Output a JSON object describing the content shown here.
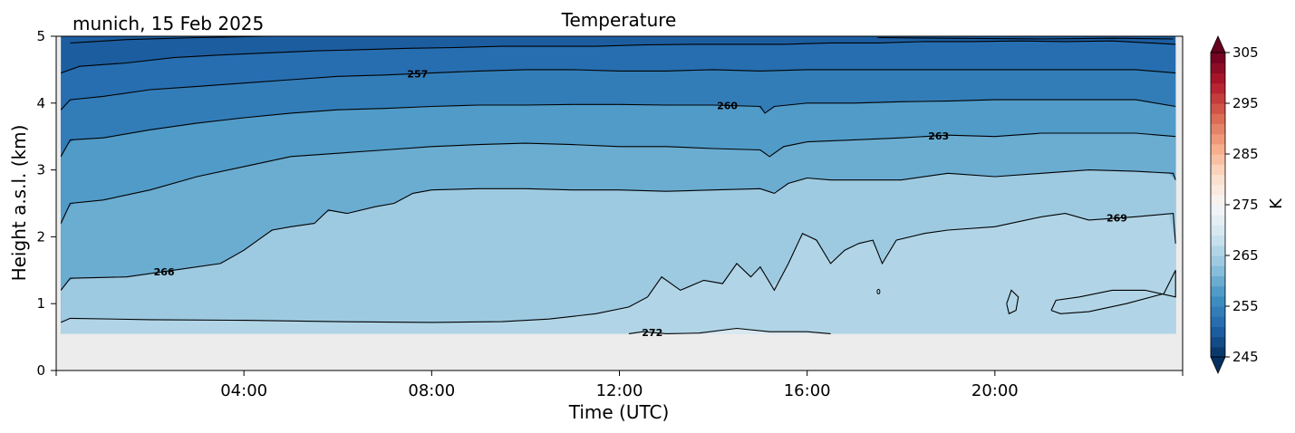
{
  "chart_data": {
    "type": "heatmap",
    "location_date": "munich, 15 Feb 2025",
    "title": "Temperature",
    "xlabel": "Time (UTC)",
    "ylabel": "Height a.s.l. (km)",
    "colorbar_label": "K",
    "x_range_hours": [
      0,
      24
    ],
    "x_ticks": [
      {
        "hour": 4,
        "label": "04:00"
      },
      {
        "hour": 8,
        "label": "08:00"
      },
      {
        "hour": 12,
        "label": "12:00"
      },
      {
        "hour": 16,
        "label": "16:00"
      },
      {
        "hour": 20,
        "label": "20:00"
      }
    ],
    "ylim_km": [
      0,
      5
    ],
    "y_ticks": [
      "0",
      "1",
      "2",
      "3",
      "4",
      "5"
    ],
    "data_bottom_km": 0.55,
    "colorbar": {
      "vmin": 245,
      "vmax": 305,
      "step": 2,
      "ticks": [
        "245",
        "255",
        "265",
        "275",
        "285",
        "295",
        "305"
      ],
      "colormap": "RdBu_r",
      "extend": "both"
    },
    "contours": [
      {
        "level": 272,
        "label": "272",
        "label_hour": 12.7,
        "points": [
          [
            12.2,
            0.55
          ],
          [
            12.5,
            0.58
          ],
          [
            13.0,
            0.55
          ],
          [
            13.7,
            0.56
          ],
          [
            14.5,
            0.63
          ],
          [
            15.2,
            0.58
          ],
          [
            16.0,
            0.58
          ],
          [
            16.5,
            0.55
          ]
        ]
      },
      {
        "level": 269,
        "label": "269",
        "label_hour": 22.6,
        "points": [
          [
            0.1,
            0.72
          ],
          [
            0.3,
            0.78
          ],
          [
            2,
            0.76
          ],
          [
            4,
            0.75
          ],
          [
            6,
            0.73
          ],
          [
            8,
            0.72
          ],
          [
            9.5,
            0.73
          ],
          [
            10.5,
            0.77
          ],
          [
            11.5,
            0.85
          ],
          [
            12.2,
            0.95
          ],
          [
            12.6,
            1.1
          ],
          [
            12.9,
            1.4
          ],
          [
            13.3,
            1.2
          ],
          [
            13.8,
            1.35
          ],
          [
            14.2,
            1.3
          ],
          [
            14.5,
            1.6
          ],
          [
            14.8,
            1.4
          ],
          [
            15.0,
            1.55
          ],
          [
            15.3,
            1.2
          ],
          [
            15.6,
            1.6
          ],
          [
            15.9,
            2.05
          ],
          [
            16.2,
            1.95
          ],
          [
            16.5,
            1.6
          ],
          [
            16.8,
            1.8
          ],
          [
            17.1,
            1.9
          ],
          [
            17.4,
            1.95
          ],
          [
            17.6,
            1.6
          ],
          [
            17.9,
            1.95
          ],
          [
            18.5,
            2.05
          ],
          [
            19.0,
            2.1
          ],
          [
            20.0,
            2.15
          ],
          [
            21.0,
            2.3
          ],
          [
            21.5,
            2.35
          ],
          [
            22.0,
            2.25
          ],
          [
            23.0,
            2.3
          ],
          [
            23.8,
            2.35
          ],
          [
            23.85,
            1.9
          ]
        ]
      },
      {
        "level": 269,
        "label": "",
        "label_hour": null,
        "points": [
          [
            20.25,
            1.0
          ],
          [
            20.35,
            1.2
          ],
          [
            20.5,
            1.1
          ],
          [
            20.45,
            0.9
          ],
          [
            20.3,
            0.85
          ],
          [
            20.25,
            1.0
          ]
        ]
      },
      {
        "level": 269,
        "label": "",
        "label_hour": null,
        "points": [
          [
            21.2,
            0.9
          ],
          [
            21.3,
            1.05
          ],
          [
            21.8,
            1.1
          ],
          [
            22.5,
            1.2
          ],
          [
            23.2,
            1.2
          ],
          [
            23.85,
            1.1
          ],
          [
            23.85,
            1.5
          ],
          [
            23.6,
            1.15
          ],
          [
            22.8,
            1.0
          ],
          [
            22.0,
            0.88
          ],
          [
            21.4,
            0.85
          ],
          [
            21.2,
            0.9
          ]
        ]
      },
      {
        "level": 266,
        "label": "266",
        "label_hour": 2.3,
        "points": [
          [
            0.1,
            1.2
          ],
          [
            0.3,
            1.38
          ],
          [
            1.5,
            1.4
          ],
          [
            2.5,
            1.5
          ],
          [
            3.5,
            1.6
          ],
          [
            4.0,
            1.8
          ],
          [
            4.3,
            1.95
          ],
          [
            4.6,
            2.1
          ],
          [
            5.0,
            2.15
          ],
          [
            5.5,
            2.2
          ],
          [
            5.8,
            2.4
          ],
          [
            6.2,
            2.35
          ],
          [
            6.8,
            2.45
          ],
          [
            7.2,
            2.5
          ],
          [
            7.6,
            2.65
          ],
          [
            8.0,
            2.7
          ],
          [
            9.0,
            2.72
          ],
          [
            10.0,
            2.72
          ],
          [
            11.0,
            2.7
          ],
          [
            12.0,
            2.7
          ],
          [
            13.0,
            2.68
          ],
          [
            14.0,
            2.7
          ],
          [
            15.0,
            2.72
          ],
          [
            15.3,
            2.65
          ],
          [
            15.6,
            2.8
          ],
          [
            16.0,
            2.88
          ],
          [
            16.5,
            2.85
          ],
          [
            17.0,
            2.85
          ],
          [
            18.0,
            2.85
          ],
          [
            19.0,
            2.95
          ],
          [
            20.0,
            2.9
          ],
          [
            21.0,
            2.95
          ],
          [
            22.0,
            3.0
          ],
          [
            23.0,
            2.98
          ],
          [
            23.8,
            2.95
          ],
          [
            23.85,
            2.85
          ]
        ]
      },
      {
        "level": 263,
        "label": "263",
        "label_hour": 18.8,
        "points": [
          [
            0.1,
            2.2
          ],
          [
            0.3,
            2.5
          ],
          [
            1.0,
            2.55
          ],
          [
            2.0,
            2.7
          ],
          [
            3.0,
            2.9
          ],
          [
            4.0,
            3.05
          ],
          [
            5.0,
            3.2
          ],
          [
            6.0,
            3.25
          ],
          [
            7.0,
            3.3
          ],
          [
            8.0,
            3.35
          ],
          [
            9.0,
            3.38
          ],
          [
            10.0,
            3.4
          ],
          [
            11.0,
            3.38
          ],
          [
            12.0,
            3.35
          ],
          [
            13.0,
            3.35
          ],
          [
            14.0,
            3.32
          ],
          [
            15.0,
            3.3
          ],
          [
            15.2,
            3.2
          ],
          [
            15.5,
            3.35
          ],
          [
            16.0,
            3.42
          ],
          [
            17.0,
            3.45
          ],
          [
            18.0,
            3.48
          ],
          [
            19.0,
            3.52
          ],
          [
            20.0,
            3.5
          ],
          [
            21.0,
            3.55
          ],
          [
            22.0,
            3.55
          ],
          [
            23.0,
            3.55
          ],
          [
            23.85,
            3.5
          ]
        ]
      },
      {
        "level": 260,
        "label": "260",
        "label_hour": 14.3,
        "points": [
          [
            0.1,
            3.2
          ],
          [
            0.3,
            3.45
          ],
          [
            1.0,
            3.48
          ],
          [
            2.0,
            3.6
          ],
          [
            3.0,
            3.7
          ],
          [
            4.0,
            3.78
          ],
          [
            5.0,
            3.85
          ],
          [
            6.0,
            3.9
          ],
          [
            7.0,
            3.92
          ],
          [
            8.0,
            3.95
          ],
          [
            9.0,
            3.97
          ],
          [
            10.0,
            3.97
          ],
          [
            11.0,
            3.98
          ],
          [
            12.0,
            3.98
          ],
          [
            13.0,
            3.97
          ],
          [
            14.0,
            3.97
          ],
          [
            15.0,
            3.95
          ],
          [
            15.1,
            3.85
          ],
          [
            15.3,
            3.95
          ],
          [
            16.0,
            4.0
          ],
          [
            17.0,
            4.0
          ],
          [
            18.0,
            4.02
          ],
          [
            19.0,
            4.03
          ],
          [
            20.0,
            4.05
          ],
          [
            21.0,
            4.05
          ],
          [
            22.0,
            4.05
          ],
          [
            23.0,
            4.05
          ],
          [
            23.85,
            3.95
          ]
        ]
      },
      {
        "level": 257,
        "label": "257",
        "label_hour": 7.7,
        "points": [
          [
            0.1,
            3.9
          ],
          [
            0.3,
            4.05
          ],
          [
            1.0,
            4.1
          ],
          [
            2.0,
            4.2
          ],
          [
            3.0,
            4.25
          ],
          [
            4.0,
            4.3
          ],
          [
            5.0,
            4.35
          ],
          [
            6.0,
            4.4
          ],
          [
            7.0,
            4.42
          ],
          [
            8.0,
            4.45
          ],
          [
            9.0,
            4.48
          ],
          [
            10.0,
            4.5
          ],
          [
            11.0,
            4.5
          ],
          [
            12.0,
            4.48
          ],
          [
            13.0,
            4.48
          ],
          [
            14.0,
            4.5
          ],
          [
            15.0,
            4.48
          ],
          [
            16.0,
            4.5
          ],
          [
            17.0,
            4.5
          ],
          [
            18.0,
            4.5
          ],
          [
            19.0,
            4.5
          ],
          [
            20.0,
            4.5
          ],
          [
            21.0,
            4.5
          ],
          [
            22.0,
            4.5
          ],
          [
            23.0,
            4.5
          ],
          [
            23.85,
            4.45
          ]
        ]
      },
      {
        "level": 254,
        "label": "",
        "label_hour": null,
        "points": [
          [
            0.1,
            4.45
          ],
          [
            0.5,
            4.55
          ],
          [
            1.5,
            4.6
          ],
          [
            2.5,
            4.68
          ],
          [
            3.5,
            4.72
          ],
          [
            4.5,
            4.75
          ],
          [
            5.5,
            4.78
          ],
          [
            6.5,
            4.8
          ],
          [
            7.5,
            4.82
          ],
          [
            8.5,
            4.83
          ],
          [
            9.5,
            4.85
          ],
          [
            10.5,
            4.85
          ],
          [
            11.5,
            4.85
          ],
          [
            12.5,
            4.87
          ],
          [
            13.5,
            4.88
          ],
          [
            14.5,
            4.88
          ],
          [
            15.5,
            4.88
          ],
          [
            16.5,
            4.9
          ],
          [
            17.5,
            4.9
          ],
          [
            18.5,
            4.92
          ],
          [
            19.5,
            4.92
          ],
          [
            20.5,
            4.93
          ],
          [
            21.5,
            4.92
          ],
          [
            22.5,
            4.93
          ],
          [
            23.85,
            4.88
          ]
        ]
      },
      {
        "level": 251,
        "label": "",
        "label_hour": null,
        "points": [
          [
            0.3,
            4.9
          ],
          [
            1.5,
            4.95
          ],
          [
            3.0,
            4.98
          ],
          [
            4.5,
            5.0
          ]
        ]
      },
      {
        "level": 251,
        "label": "",
        "label_hour": null,
        "points": [
          [
            17.5,
            4.98
          ],
          [
            19.0,
            4.97
          ],
          [
            21.0,
            4.96
          ],
          [
            22.5,
            4.97
          ],
          [
            23.8,
            4.96
          ]
        ]
      }
    ]
  }
}
